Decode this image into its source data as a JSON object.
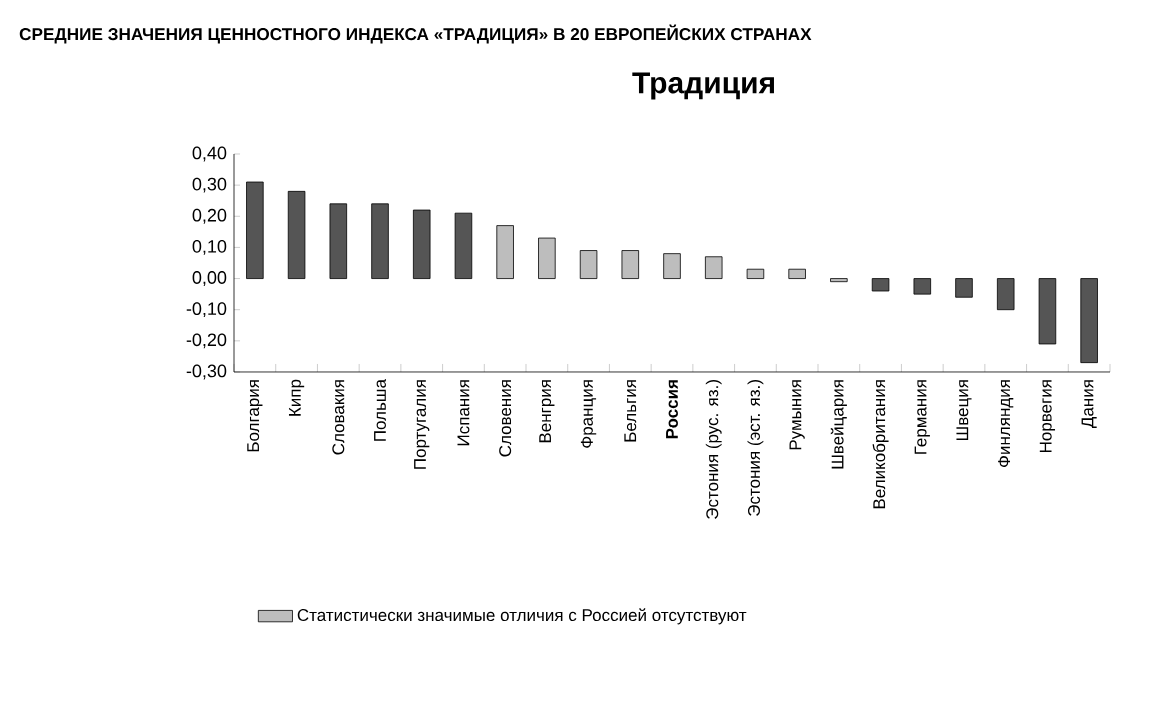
{
  "chart_data": {
    "type": "bar",
    "title": "СРЕДНИЕ ЗНАЧЕНИЯ ЦЕННОСТНОГО ИНДЕКСА «ТРАДИЦИЯ» В 20 ЕВРОПЕЙСКИХ СТРАНАХ",
    "subtitle": "Традиция",
    "categories": [
      "Болгария",
      "Кипр",
      "Словакия",
      "Польша",
      "Португалия",
      "Испания",
      "Словения",
      "Венгрия",
      "Франция",
      "Бельгия",
      "**Россия**",
      "Эстония (рус. яз.)",
      "Эстония (эст. яз.)",
      "Румыния",
      "Швейцария",
      "Великобритания",
      "Германия",
      "Швеция",
      "Финляндия",
      "Норвегия",
      "Дания"
    ],
    "series": [
      {
        "color": "#555555",
        "values": [
          0.31,
          0.28,
          0.24,
          0.24,
          0.22,
          0.21,
          null,
          null,
          null,
          null,
          null,
          null,
          null,
          null,
          null,
          -0.04,
          -0.05,
          -0.06,
          -0.1,
          -0.21,
          -0.27
        ]
      },
      {
        "name": "Статистически значимые отличия с Россией отсутствуют",
        "color": "#bdbdbd",
        "values": [
          null,
          null,
          null,
          null,
          null,
          null,
          0.17,
          0.13,
          0.09,
          0.09,
          0.08,
          0.07,
          0.03,
          0.03,
          -0.01,
          null,
          null,
          null,
          null,
          null,
          null
        ]
      }
    ],
    "ylim": [
      -0.3,
      0.4
    ],
    "yticks": [
      {
        "value": -0.3,
        "label": "-0,30"
      },
      {
        "value": -0.2,
        "label": "-0,20"
      },
      {
        "value": -0.1,
        "label": "-0,10"
      },
      {
        "value": 0,
        "label": "0,00"
      },
      {
        "value": 0.1,
        "label": "0,10"
      },
      {
        "value": 0.2,
        "label": "0,20"
      },
      {
        "value": 0.3,
        "label": "0,30"
      },
      {
        "value": 0.4,
        "label": "0,40"
      }
    ],
    "grid": false,
    "legend": "bottom"
  }
}
